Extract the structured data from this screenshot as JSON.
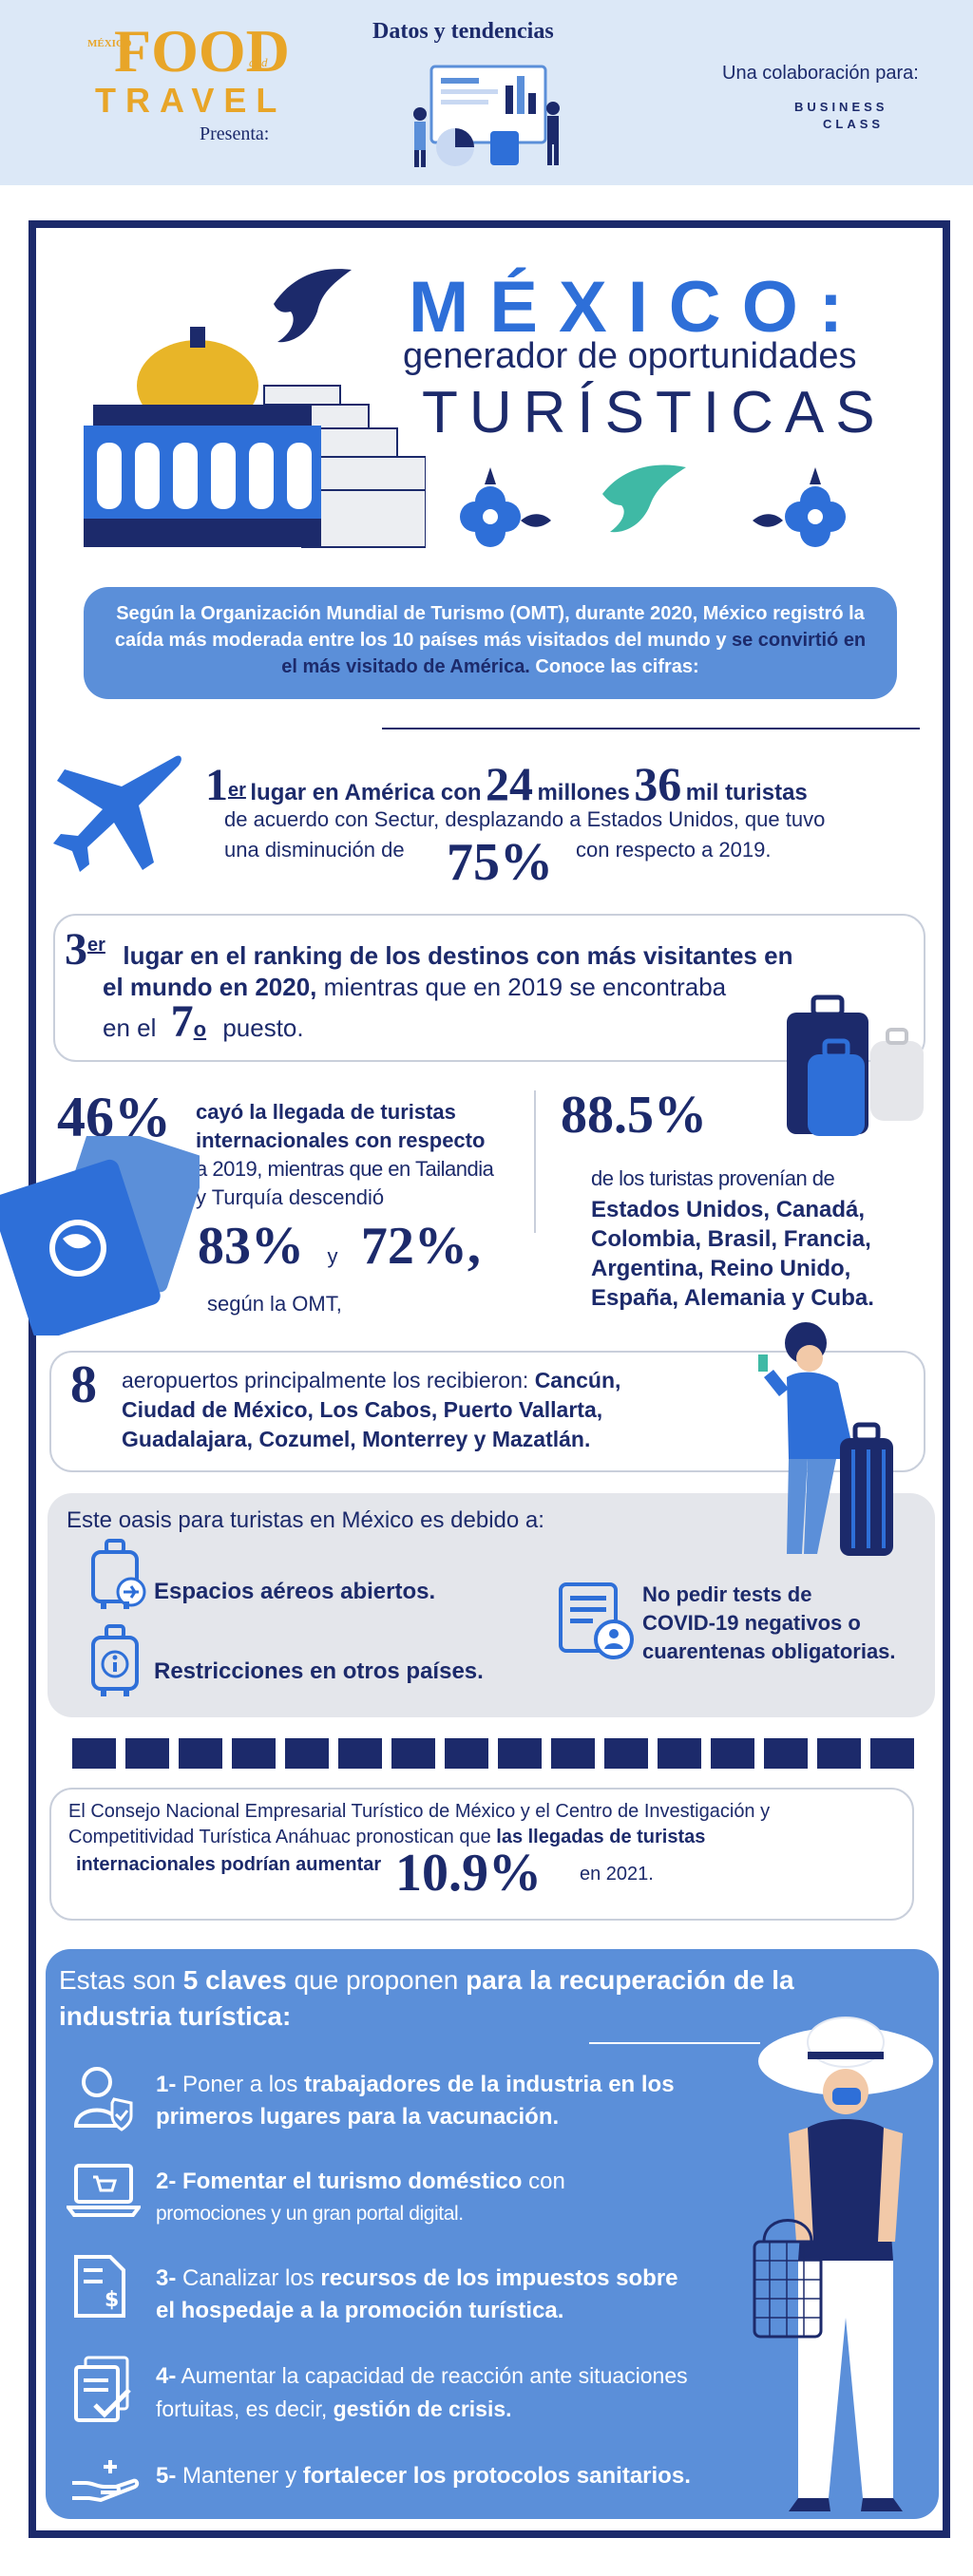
{
  "header": {
    "brand_small": "MÉXICO",
    "brand_food": "FOOD",
    "brand_and": "and",
    "brand_travel": "TRAVEL",
    "presenta": "Presenta:",
    "datos": "Datos y tendencias",
    "colaboracion": "Una colaboración para:",
    "partner_line1": "BUSINESS",
    "partner_line2": "CLASS"
  },
  "title": {
    "mexico": "MÉXICO:",
    "subtitle": "generador de oportunidades",
    "turisticas": "TURÍSTICAS"
  },
  "intro": {
    "p1": "Según la Organización Mundial de Turismo (OMT), durante 2020, México registró la caída más moderada entre los 10 países más visitados del mundo y ",
    "p2": "se convirtió en el más visitado de América.",
    "p3": " Conoce las cifras:"
  },
  "stat1": {
    "rank": "1",
    "sup": "er",
    "a": "lugar en América con",
    "n1": "24",
    "b": "millones",
    "n2": "36",
    "c": "mil turistas",
    "d": "de acuerdo con Sectur, desplazando a Estados Unidos, que tuvo",
    "e": "una disminución de",
    "pct": "75%",
    "f": "con respecto a 2019."
  },
  "stat2": {
    "rank": "3",
    "sup": "er",
    "a": "lugar en el ranking de los destinos con más visitantes en",
    "b": "el mundo en 2020,",
    "c": " mientras que en 2019 se encontraba",
    "d": "en el",
    "pos": "7",
    "pos_sup": "o",
    "e": "puesto."
  },
  "stat3": {
    "pct": "46%",
    "a": "cayó la llegada de turistas",
    "b": "internacionales con respecto",
    "c": "a 2019, mientras que en Tailandia",
    "d": "y Turquía descendió",
    "p1": "83%",
    "y": "y",
    "p2": "72%,",
    "e": "según la OMT,"
  },
  "stat4": {
    "pct": "88.5%",
    "a": "de los turistas provenían de",
    "countries1": "Estados Unidos, Canadá,",
    "countries2": "Colombia, Brasil, Francia,",
    "countries3": "Argentina, Reino Unido,",
    "countries4": "España, Alemania y Cuba."
  },
  "stat5": {
    "n": "8",
    "a": "aeropuertos principalmente los recibieron: ",
    "b1": "Cancún,",
    "b2": "Ciudad de México, Los Cabos, Puerto Vallarta,",
    "b3": "Guadalajara, Cozumel, Monterrey y Mazatlán."
  },
  "oasis": {
    "title": "Este oasis para turistas en México es debido a:",
    "r1": "Espacios aéreos abiertos.",
    "r2": "Restricciones en otros países.",
    "r3a": "No pedir tests de",
    "r3b": "COVID-19 negativos o",
    "r3c": "cuarentenas obligatorias."
  },
  "forecast": {
    "a": "El Consejo Nacional Empresarial Turístico de México y el Centro de Investigación y",
    "b": "Competitividad Turística Anáhuac pronostican que ",
    "b_bold": "las llegadas de turistas",
    "c_bold": "internacionales podrían aumentar",
    "pct": "10.9%",
    "d": "en 2021."
  },
  "keys": {
    "intro_a": "Estas son ",
    "intro_b": "5 claves",
    "intro_c": " que proponen ",
    "intro_d": "para la recuperación de la",
    "intro_e": "industria turística:",
    "k1_num": "1-",
    "k1_a": " Poner a los ",
    "k1_b": "trabajadores de la industria en los",
    "k1_c": "primeros lugares para la vacunación.",
    "k2_num": "2-",
    "k2_a": " Fomentar el turismo doméstico",
    "k2_b": " con",
    "k2_c": "promociones y un gran portal digital.",
    "k3_num": "3-",
    "k3_a": " Canalizar los ",
    "k3_b": "recursos de los impuestos sobre",
    "k3_c": "el hospedaje a la promoción turística.",
    "k4_num": "4-",
    "k4_a": " Aumentar la capacidad de reacción ante situaciones",
    "k4_b": "fortuitas, es decir, ",
    "k4_c": "gestión de crisis.",
    "k5_num": "5-",
    "k5_a": " Mantener y ",
    "k5_b": "fortalecer los protocolos sanitarios."
  },
  "colors": {
    "navy": "#1c2a6b",
    "blue": "#2e6fd8",
    "light_blue": "#5b8fd9",
    "gold": "#e8a528",
    "header_bg": "#dce8f7"
  }
}
